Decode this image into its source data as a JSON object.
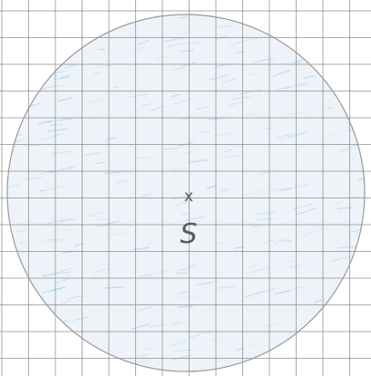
{
  "diagram": {
    "center_mark": "x",
    "center_label": "S",
    "colors": {
      "paper": "#ffffff",
      "grid_line": "#8f8f8f",
      "circle_outline": "#9a9a9a",
      "shading": "#dfeaf3",
      "shading_strokes": "#9cc8e6",
      "pencil": "#5a5a5a"
    }
  }
}
